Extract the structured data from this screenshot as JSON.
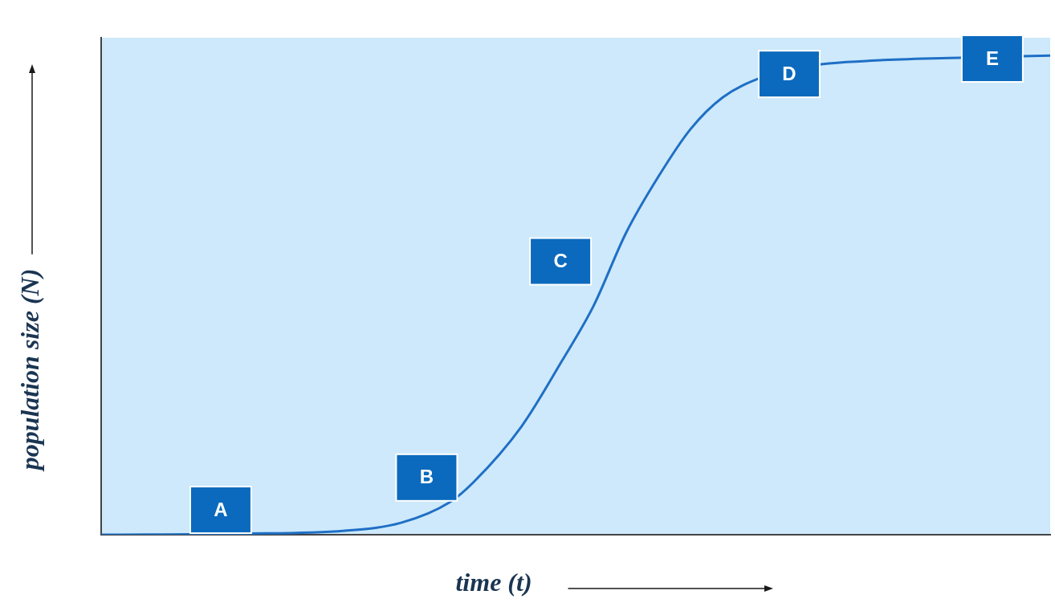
{
  "chart_data": {
    "type": "line",
    "x_label": "time (t)",
    "y_label": "population size (N)",
    "x": [
      0,
      14.6,
      25.7,
      31.6,
      36.7,
      39.2,
      44.3,
      48.5,
      51.9,
      55.3,
      58.7,
      62.1,
      65.5,
      69.7,
      73.9,
      82.4,
      90.9,
      100
    ],
    "values": [
      0,
      0.2,
      0.8,
      2.4,
      6.5,
      10.5,
      21.8,
      34.8,
      46.1,
      60.7,
      72.0,
      81.6,
      88.0,
      92.1,
      94.2,
      95.5,
      96.0,
      96.4
    ],
    "xlim": [
      0,
      100
    ],
    "ylim": [
      0,
      100
    ],
    "color": "#1f6fc5",
    "grid": false,
    "tick_labels": false,
    "annotations": [
      {
        "text": "A",
        "x": 12.6,
        "y": 5.0
      },
      {
        "text": "B",
        "x": 34.3,
        "y": 11.5
      },
      {
        "text": "C",
        "x": 48.4,
        "y": 55.0
      },
      {
        "text": "D",
        "x": 72.5,
        "y": 92.7
      },
      {
        "text": "E",
        "x": 93.9,
        "y": 95.8
      }
    ]
  }
}
